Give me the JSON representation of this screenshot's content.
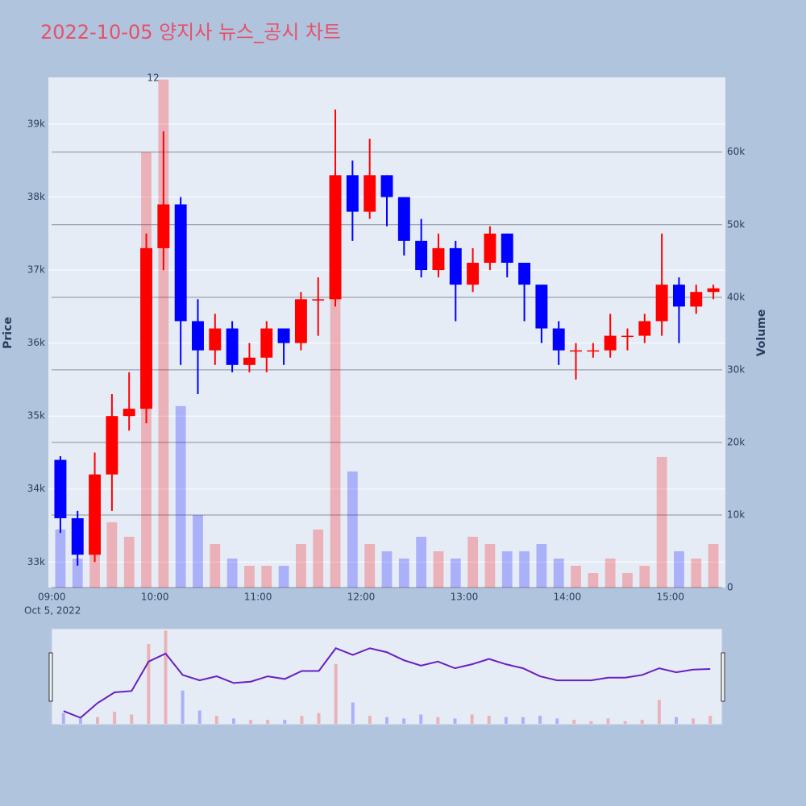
{
  "chart_data": {
    "type": "candlestick",
    "title": "2022-10-05 양지사 뉴스_공시 차트",
    "x": [
      "2022-10-05 09:05",
      "2022-10-05 09:15",
      "2022-10-05 09:25",
      "2022-10-05 09:35",
      "2022-10-05 09:45",
      "2022-10-05 09:55",
      "2022-10-05 10:05",
      "2022-10-05 10:15",
      "2022-10-05 10:25",
      "2022-10-05 10:35",
      "2022-10-05 10:45",
      "2022-10-05 10:55",
      "2022-10-05 11:05",
      "2022-10-05 11:15",
      "2022-10-05 11:25",
      "2022-10-05 11:35",
      "2022-10-05 11:45",
      "2022-10-05 11:55",
      "2022-10-05 12:05",
      "2022-10-05 12:15",
      "2022-10-05 12:25",
      "2022-10-05 12:35",
      "2022-10-05 12:45",
      "2022-10-05 12:55",
      "2022-10-05 13:05",
      "2022-10-05 13:15",
      "2022-10-05 13:25",
      "2022-10-05 13:35",
      "2022-10-05 13:45",
      "2022-10-05 13:55",
      "2022-10-05 14:05",
      "2022-10-05 14:15",
      "2022-10-05 14:25",
      "2022-10-05 14:35",
      "2022-10-05 14:45",
      "2022-10-05 14:55",
      "2022-10-05 15:05",
      "2022-10-05 15:15",
      "2022-10-05 15:25"
    ],
    "open": [
      34400,
      33600,
      33100,
      34200,
      35000,
      35100,
      37300,
      37900,
      36300,
      35900,
      36200,
      35700,
      35800,
      36200,
      36000,
      36600,
      36600,
      38300,
      37800,
      38300,
      38000,
      37400,
      37000,
      37300,
      36800,
      37100,
      37500,
      37100,
      36800,
      36200,
      35900,
      35900,
      35900,
      36100,
      36100,
      36300,
      36800,
      36500,
      36700
    ],
    "high": [
      34450,
      33700,
      34500,
      35300,
      35600,
      37500,
      38900,
      38000,
      36600,
      36400,
      36300,
      36000,
      36300,
      36200,
      36700,
      36900,
      39200,
      38500,
      38800,
      38300,
      38000,
      37700,
      37500,
      37400,
      37300,
      37600,
      37500,
      37100,
      36800,
      36300,
      36000,
      36000,
      36400,
      36200,
      36400,
      37500,
      36900,
      36800,
      36800
    ],
    "low": [
      33400,
      32950,
      33000,
      33700,
      34800,
      34900,
      37000,
      35700,
      35300,
      35700,
      35600,
      35600,
      35600,
      35700,
      35900,
      36100,
      36500,
      37400,
      37700,
      37600,
      37200,
      36900,
      36900,
      36300,
      36700,
      37000,
      36900,
      36300,
      36000,
      35700,
      35500,
      35800,
      35800,
      35900,
      36000,
      36100,
      36000,
      36400,
      36600
    ],
    "close": [
      33600,
      33100,
      34200,
      35000,
      35100,
      37300,
      37900,
      36300,
      35900,
      36200,
      35700,
      35800,
      36200,
      36000,
      36600,
      36600,
      38300,
      37800,
      38300,
      38000,
      37400,
      37000,
      37300,
      36800,
      37100,
      37500,
      37100,
      36800,
      36200,
      35900,
      35900,
      35900,
      36100,
      36100,
      36300,
      36800,
      36500,
      36700,
      36750
    ],
    "volume": [
      8000,
      4000,
      5000,
      9000,
      7000,
      60000,
      70000,
      25000,
      10000,
      6000,
      4000,
      3000,
      3000,
      3000,
      6000,
      8000,
      45000,
      16000,
      6000,
      5000,
      4000,
      7000,
      5000,
      4000,
      7000,
      6000,
      5000,
      5000,
      6000,
      4000,
      3000,
      2000,
      4000,
      2000,
      3000,
      18000,
      5000,
      4000,
      6000
    ],
    "increasing_color": "#ff0000",
    "decreasing_color": "#0000ff",
    "xlim": [
      "2022-10-05 08:58",
      "2022-10-05 15:32"
    ],
    "xticks": [
      {
        "value": "2022-10-05 09:00",
        "label": "09:00"
      },
      {
        "value": "2022-10-05 10:00",
        "label": "10:00"
      },
      {
        "value": "2022-10-05 11:00",
        "label": "11:00"
      },
      {
        "value": "2022-10-05 12:00",
        "label": "12:00"
      },
      {
        "value": "2022-10-05 13:00",
        "label": "13:00"
      },
      {
        "value": "2022-10-05 14:00",
        "label": "14:00"
      },
      {
        "value": "2022-10-05 15:00",
        "label": "15:00"
      }
    ],
    "x_date_label": "Oct 5, 2022",
    "ylim": [
      32650,
      39640
    ],
    "yticks": [
      {
        "value": 33000,
        "label": "33k"
      },
      {
        "value": 34000,
        "label": "34k"
      },
      {
        "value": 35000,
        "label": "35k"
      },
      {
        "value": 36000,
        "label": "36k"
      },
      {
        "value": 37000,
        "label": "37k"
      },
      {
        "value": 38000,
        "label": "38k"
      },
      {
        "value": 39000,
        "label": "39k"
      }
    ],
    "y2lim": [
      0,
      70300
    ],
    "y2ticks": [
      0,
      {
        "value": 10000,
        "label": "10k"
      },
      {
        "value": 20000,
        "label": "20k"
      },
      {
        "value": 30000,
        "label": "30k"
      },
      {
        "value": 40000,
        "label": "40k"
      },
      {
        "value": 50000,
        "label": "50k"
      },
      {
        "value": 60000,
        "label": "60k"
      }
    ],
    "ylabel": "Price",
    "y2label": "Volume",
    "annotation": "12",
    "grid": true,
    "rangeslider": true
  }
}
